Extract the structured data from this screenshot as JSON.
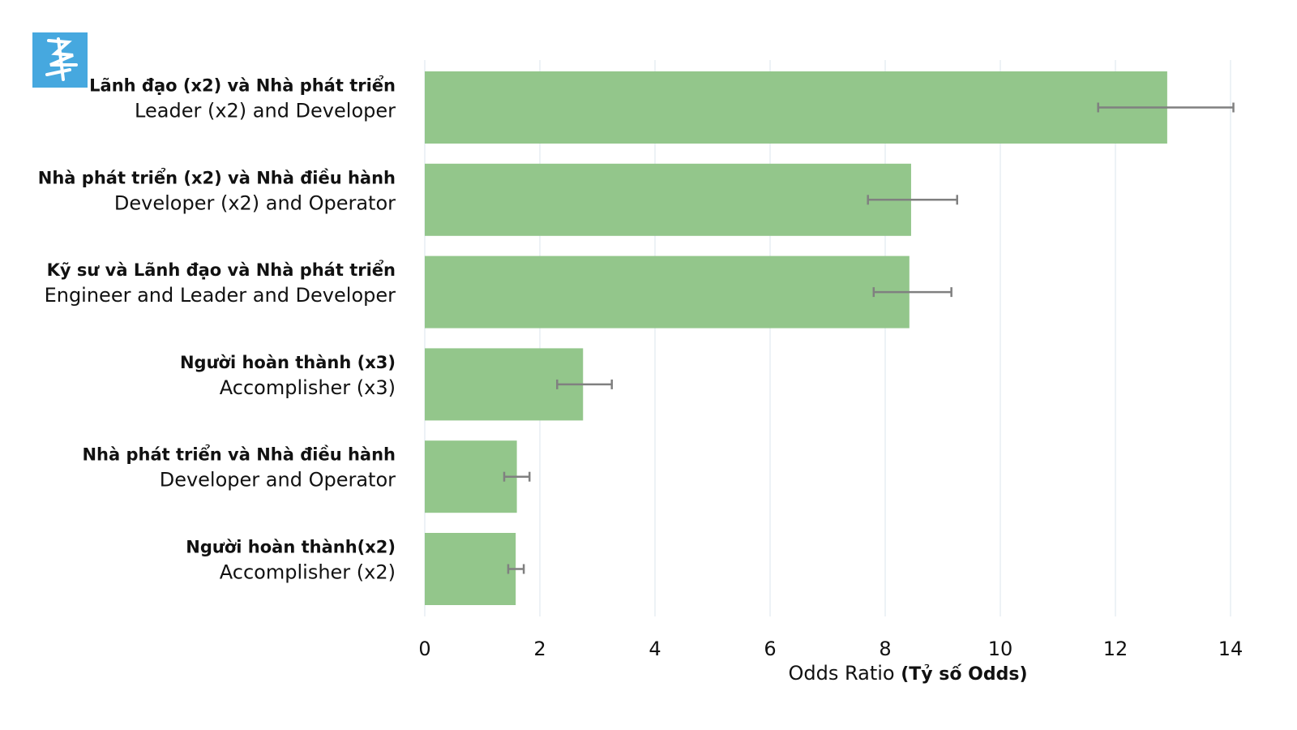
{
  "colors": {
    "bar": "#93c68b",
    "error_bar": "#808080",
    "grid": "#dbe4ec",
    "logo_bg": "#46a8df"
  },
  "logo": {
    "icon": "sketch-figure-icon"
  },
  "chart_data": {
    "type": "bar",
    "orientation": "horizontal",
    "categories": [
      {
        "vi": "Lãnh đạo (x2) và Nhà phát triển",
        "en": "Leader (x2) and Developer"
      },
      {
        "vi": "Nhà phát triển (x2) và Nhà điều hành",
        "en": "Developer (x2) and Operator"
      },
      {
        "vi": "Kỹ sư và Lãnh đạo và Nhà phát triển",
        "en": "Engineer and Leader and Developer"
      },
      {
        "vi": "Người hoàn thành (x3)",
        "en": "Accomplisher (x3)"
      },
      {
        "vi": "Nhà phát triển và Nhà điều hành",
        "en": "Developer and Operator"
      },
      {
        "vi": "Người hoàn thành(x2)",
        "en": "Accomplisher (x2)"
      }
    ],
    "values": [
      12.9,
      8.45,
      8.42,
      2.75,
      1.6,
      1.58
    ],
    "error_low": [
      11.7,
      7.7,
      7.8,
      2.3,
      1.38,
      1.45
    ],
    "error_high": [
      14.05,
      9.25,
      9.15,
      3.25,
      1.82,
      1.72
    ],
    "xlim": [
      0,
      14
    ],
    "xticks": [
      "0",
      "2",
      "4",
      "6",
      "8",
      "10",
      "12",
      "14"
    ],
    "xlabel": "Odds Ratio",
    "xlabel_bold": "(Tỷ số Odds)",
    "grid": true
  }
}
